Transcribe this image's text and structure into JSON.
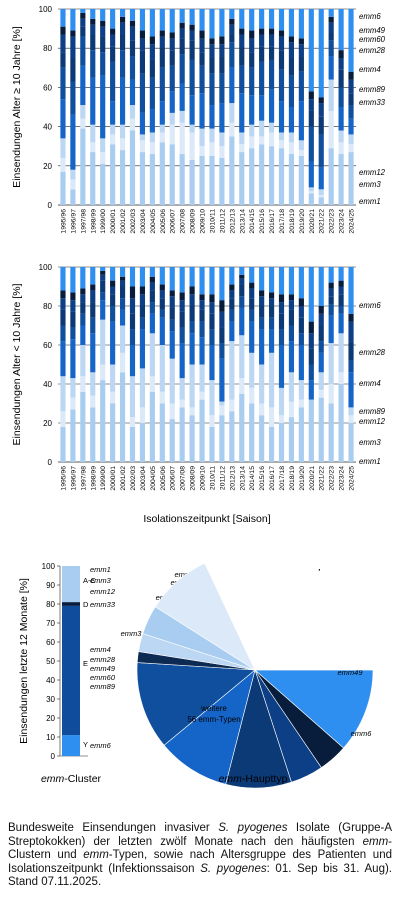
{
  "chart_data": [
    {
      "type": "bar",
      "stacked": true,
      "title": "",
      "ylabel": "Einsendungen Alter ≥ 10 Jahre [%]",
      "xlabel": "",
      "ylim": [
        0,
        100
      ],
      "yticks": [
        0,
        20,
        40,
        60,
        80,
        100
      ],
      "grid": true,
      "categories": [
        "1995/96",
        "1996/97",
        "1997/98",
        "1998/99",
        "1999/00",
        "2000/01",
        "2001/02",
        "2002/03",
        "2003/04",
        "2004/05",
        "2005/06",
        "2006/07",
        "2007/08",
        "2008/09",
        "2009/10",
        "2010/11",
        "2011/12",
        "2012/13",
        "2013/14",
        "2014/15",
        "2015/16",
        "2016/17",
        "2017/18",
        "2018/19",
        "2019/20",
        "2020/21",
        "2021/22",
        "2022/23",
        "2023/24",
        "2024/25"
      ],
      "series": [
        {
          "name": "emm1",
          "values": [
            17,
            8,
            39,
            27,
            21,
            31,
            28,
            38,
            27,
            26,
            32,
            31,
            26,
            23,
            25,
            25,
            24,
            35,
            27,
            29,
            31,
            30,
            29,
            26,
            25,
            6,
            4,
            29,
            26,
            27
          ]
        },
        {
          "name": "emm3",
          "values": [
            7,
            5,
            5,
            5,
            6,
            5,
            6,
            6,
            6,
            6,
            5,
            10,
            16,
            14,
            5,
            7,
            6,
            7,
            4,
            6,
            4,
            7,
            4,
            6,
            3,
            1,
            1,
            19,
            6,
            4
          ]
        },
        {
          "name": "emm12",
          "values": [
            10,
            5,
            7,
            9,
            7,
            5,
            7,
            7,
            3,
            5,
            4,
            6,
            6,
            4,
            9,
            7,
            7,
            10,
            6,
            6,
            8,
            5,
            4,
            5,
            5,
            2,
            3,
            16,
            6,
            5
          ]
        },
        {
          "name": "emm33",
          "values": [
            0,
            0,
            0,
            0,
            0,
            0,
            0,
            0,
            0,
            0,
            0,
            0,
            0,
            0,
            0,
            0,
            0,
            0,
            0,
            0,
            0,
            0,
            0,
            0,
            0,
            0,
            0,
            0,
            0,
            0
          ]
        },
        {
          "name": "emm4",
          "values": [
            20,
            28,
            20,
            24,
            32,
            12,
            24,
            13,
            11,
            12,
            12,
            11,
            14,
            15,
            18,
            12,
            15,
            18,
            20,
            15,
            13,
            17,
            16,
            13,
            20,
            13,
            11,
            12,
            12,
            8
          ]
        },
        {
          "name": "emm89",
          "values": [
            16,
            17,
            15,
            14,
            12,
            20,
            14,
            12,
            20,
            16,
            17,
            13,
            15,
            18,
            14,
            16,
            15,
            13,
            14,
            14,
            17,
            15,
            16,
            16,
            15,
            18,
            17,
            8,
            10,
            7
          ]
        },
        {
          "name": "emm28",
          "values": [
            8,
            12,
            5,
            8,
            8,
            8,
            8,
            8,
            12,
            9,
            10,
            8,
            8,
            10,
            7,
            8,
            9,
            4,
            9,
            8,
            8,
            7,
            10,
            9,
            8,
            8,
            9,
            4,
            9,
            6
          ]
        },
        {
          "name": "emm60",
          "values": [
            9,
            11,
            4,
            5,
            5,
            6,
            6,
            7,
            6,
            8,
            6,
            6,
            5,
            5,
            7,
            7,
            6,
            5,
            7,
            7,
            6,
            6,
            7,
            8,
            6,
            6,
            7,
            5,
            6,
            7
          ]
        },
        {
          "name": "emm49",
          "values": [
            4,
            3,
            3,
            3,
            3,
            3,
            3,
            3,
            4,
            4,
            3,
            3,
            3,
            3,
            4,
            3,
            4,
            3,
            3,
            4,
            3,
            3,
            3,
            3,
            3,
            4,
            3,
            3,
            4,
            4
          ]
        },
        {
          "name": "emm6",
          "values": [
            9,
            11,
            2,
            5,
            6,
            10,
            4,
            6,
            11,
            14,
            11,
            12,
            7,
            8,
            11,
            15,
            14,
            5,
            10,
            11,
            10,
            10,
            11,
            14,
            15,
            42,
            45,
            4,
            21,
            32
          ]
        }
      ]
    },
    {
      "type": "bar",
      "stacked": true,
      "title": "",
      "ylabel": "Einsendungen Alter < 10 Jahre [%]",
      "xlabel": "Isolationszeitpunkt [Saison]",
      "ylim": [
        0,
        100
      ],
      "yticks": [
        0,
        20,
        40,
        60,
        80,
        100
      ],
      "grid": true,
      "categories": [
        "1995/96",
        "1996/97",
        "1997/98",
        "1998/99",
        "1999/00",
        "2000/01",
        "2001/02",
        "2002/03",
        "2003/04",
        "2004/05",
        "2005/06",
        "2006/07",
        "2007/08",
        "2008/09",
        "2009/10",
        "2010/11",
        "2011/12",
        "2012/13",
        "2013/14",
        "2014/15",
        "2015/16",
        "2016/17",
        "2017/18",
        "2018/19",
        "2019/20",
        "2020/21",
        "2021/22",
        "2022/23",
        "2023/24",
        "2024/25"
      ],
      "series": [
        {
          "name": "emm1",
          "values": [
            18,
            27,
            36,
            28,
            42,
            30,
            46,
            18,
            20,
            36,
            30,
            22,
            28,
            24,
            32,
            18,
            24,
            26,
            35,
            30,
            24,
            18,
            20,
            23,
            28,
            32,
            33,
            30,
            40,
            20
          ]
        },
        {
          "name": "emm3",
          "values": [
            8,
            6,
            8,
            6,
            8,
            6,
            10,
            5,
            8,
            8,
            6,
            8,
            4,
            4,
            4,
            6,
            5,
            6,
            8,
            8,
            6,
            10,
            4,
            8,
            4,
            0,
            4,
            10,
            6,
            4
          ]
        },
        {
          "name": "emm12",
          "values": [
            18,
            10,
            16,
            12,
            23,
            14,
            14,
            21,
            20,
            22,
            24,
            23,
            11,
            22,
            14,
            18,
            2,
            30,
            22,
            18,
            20,
            28,
            14,
            15,
            10,
            0,
            9,
            21,
            20,
            4
          ]
        },
        {
          "name": "emm33",
          "values": [
            0,
            0,
            0,
            0,
            0,
            0,
            0,
            0,
            0,
            0,
            0,
            0,
            0,
            0,
            0,
            0,
            0,
            0,
            0,
            0,
            0,
            0,
            0,
            0,
            0,
            0,
            0,
            0,
            0,
            0
          ]
        },
        {
          "name": "emm4",
          "values": [
            18,
            20,
            10,
            20,
            10,
            22,
            8,
            16,
            20,
            10,
            14,
            14,
            18,
            16,
            14,
            18,
            22,
            10,
            14,
            16,
            18,
            12,
            22,
            16,
            18,
            10,
            10,
            14,
            10,
            18
          ]
        },
        {
          "name": "emm89",
          "values": [
            8,
            6,
            6,
            8,
            4,
            8,
            6,
            8,
            6,
            6,
            4,
            6,
            8,
            6,
            8,
            8,
            8,
            6,
            6,
            6,
            6,
            6,
            8,
            8,
            6,
            8,
            6,
            6,
            4,
            6
          ]
        },
        {
          "name": "emm28",
          "values": [
            8,
            8,
            6,
            8,
            6,
            6,
            6,
            8,
            6,
            6,
            6,
            6,
            8,
            8,
            6,
            8,
            8,
            6,
            6,
            6,
            6,
            6,
            8,
            8,
            8,
            8,
            8,
            4,
            6,
            10
          ]
        },
        {
          "name": "emm60",
          "values": [
            6,
            6,
            4,
            6,
            3,
            4,
            3,
            8,
            6,
            4,
            4,
            6,
            6,
            6,
            5,
            6,
            8,
            4,
            3,
            5,
            5,
            4,
            6,
            5,
            6,
            8,
            6,
            4,
            4,
            10
          ]
        },
        {
          "name": "emm49",
          "values": [
            4,
            4,
            3,
            3,
            2,
            3,
            2,
            6,
            4,
            3,
            3,
            3,
            4,
            4,
            3,
            4,
            6,
            3,
            2,
            3,
            3,
            3,
            4,
            3,
            4,
            6,
            4,
            3,
            3,
            4
          ]
        },
        {
          "name": "emm6",
          "values": [
            12,
            13,
            11,
            9,
            2,
            7,
            5,
            10,
            10,
            5,
            9,
            12,
            13,
            10,
            14,
            14,
            17,
            9,
            4,
            8,
            12,
            13,
            14,
            14,
            16,
            28,
            20,
            8,
            7,
            24
          ]
        }
      ]
    },
    {
      "type": "bar",
      "stacked": true,
      "title": "",
      "ylabel": "Einsendungen letzte 12 Monate [%]",
      "xlabel": "emm-Cluster",
      "ylim": [
        0,
        100
      ],
      "yticks": [
        0,
        10,
        20,
        30,
        40,
        50,
        60,
        70,
        80,
        90,
        100
      ],
      "categories": [
        "Cluster"
      ],
      "series": [
        {
          "name": "Y",
          "values": [
            11
          ]
        },
        {
          "name": "E",
          "values": [
            68
          ]
        },
        {
          "name": "D",
          "values": [
            2
          ]
        },
        {
          "name": "A-C",
          "values": [
            19
          ]
        }
      ],
      "annotations": [
        {
          "label": "emm1",
          "group": "A-C"
        },
        {
          "label": "emm3",
          "group": "A-C"
        },
        {
          "label": "emm12",
          "group": "A-C"
        },
        {
          "label": "emm33",
          "group": "D"
        },
        {
          "label": "emm4",
          "group": "E"
        },
        {
          "label": "emm28",
          "group": "E"
        },
        {
          "label": "emm49",
          "group": "E"
        },
        {
          "label": "emm60",
          "group": "E"
        },
        {
          "label": "emm89",
          "group": "E"
        },
        {
          "label": "emm6",
          "group": "Y"
        }
      ]
    },
    {
      "type": "pie",
      "title": "",
      "xlabel": "emm-Haupttyp",
      "labels": [
        "emm6",
        "emm49",
        "emm60",
        "emm28",
        "emm4",
        "emm89",
        "emm33",
        "emm12",
        "emm1",
        "emm3",
        "weitere 56 emm-Typen"
      ],
      "values": [
        11.5,
        4,
        4.5,
        9,
        10,
        12,
        1.5,
        2.5,
        4,
        9,
        32
      ]
    }
  ],
  "labels": {
    "chart1_right": [
      "emm6",
      "emm49",
      "emm60",
      "emm28",
      "emm4",
      "emm89",
      "emm33",
      "emm12",
      "emm3",
      "emm1"
    ],
    "chart2_right": [
      "emm6",
      "emm28",
      "emm4",
      "emm89",
      "emm12",
      "emm3",
      "emm1"
    ],
    "group_labels": [
      "A-C",
      "D",
      "E",
      "Y"
    ],
    "cluster_xlabel": "emm-Cluster",
    "pie_xlabel": "emm-Haupttyp",
    "pie_other_line1": "weitere",
    "pie_other_line2": "56 emm-Typen"
  },
  "caption": {
    "t1": "Bundesweite Einsendungen invasiver ",
    "t2": "S. pyogenes",
    "t3": " Isolate (Gruppe-A Streptokokken) der letzten zwölf Monate nach den häufigsten ",
    "t4": "emm",
    "t5": "-Clustern und ",
    "t6": "emm",
    "t7": "-Typen, sowie nach Altersgruppe des Patienten und Isolationszeitpunkt (Infektionssaison ",
    "t8": "S. pyogenes",
    "t9": ": 01. Sep bis 31. Aug). Stand 07.11.2025."
  },
  "colors": {
    "emm1": "#a9cdf0",
    "emm3": "#dbe9f9",
    "emm12": "#bcd7f3",
    "emm33": "#0c2a52",
    "emm4": "#1565c8",
    "emm89": "#0f4f9e",
    "emm28": "#0b3a76",
    "emm60": "#0d3f86",
    "emm49": "#081d3b",
    "emm6": "#2f8ff0",
    "other": "#ffffff",
    "cluster_AC": "#a9cdf0",
    "cluster_D": "#0a1f3f",
    "cluster_E": "#0f4d9c",
    "cluster_Y": "#2f8ff0"
  }
}
